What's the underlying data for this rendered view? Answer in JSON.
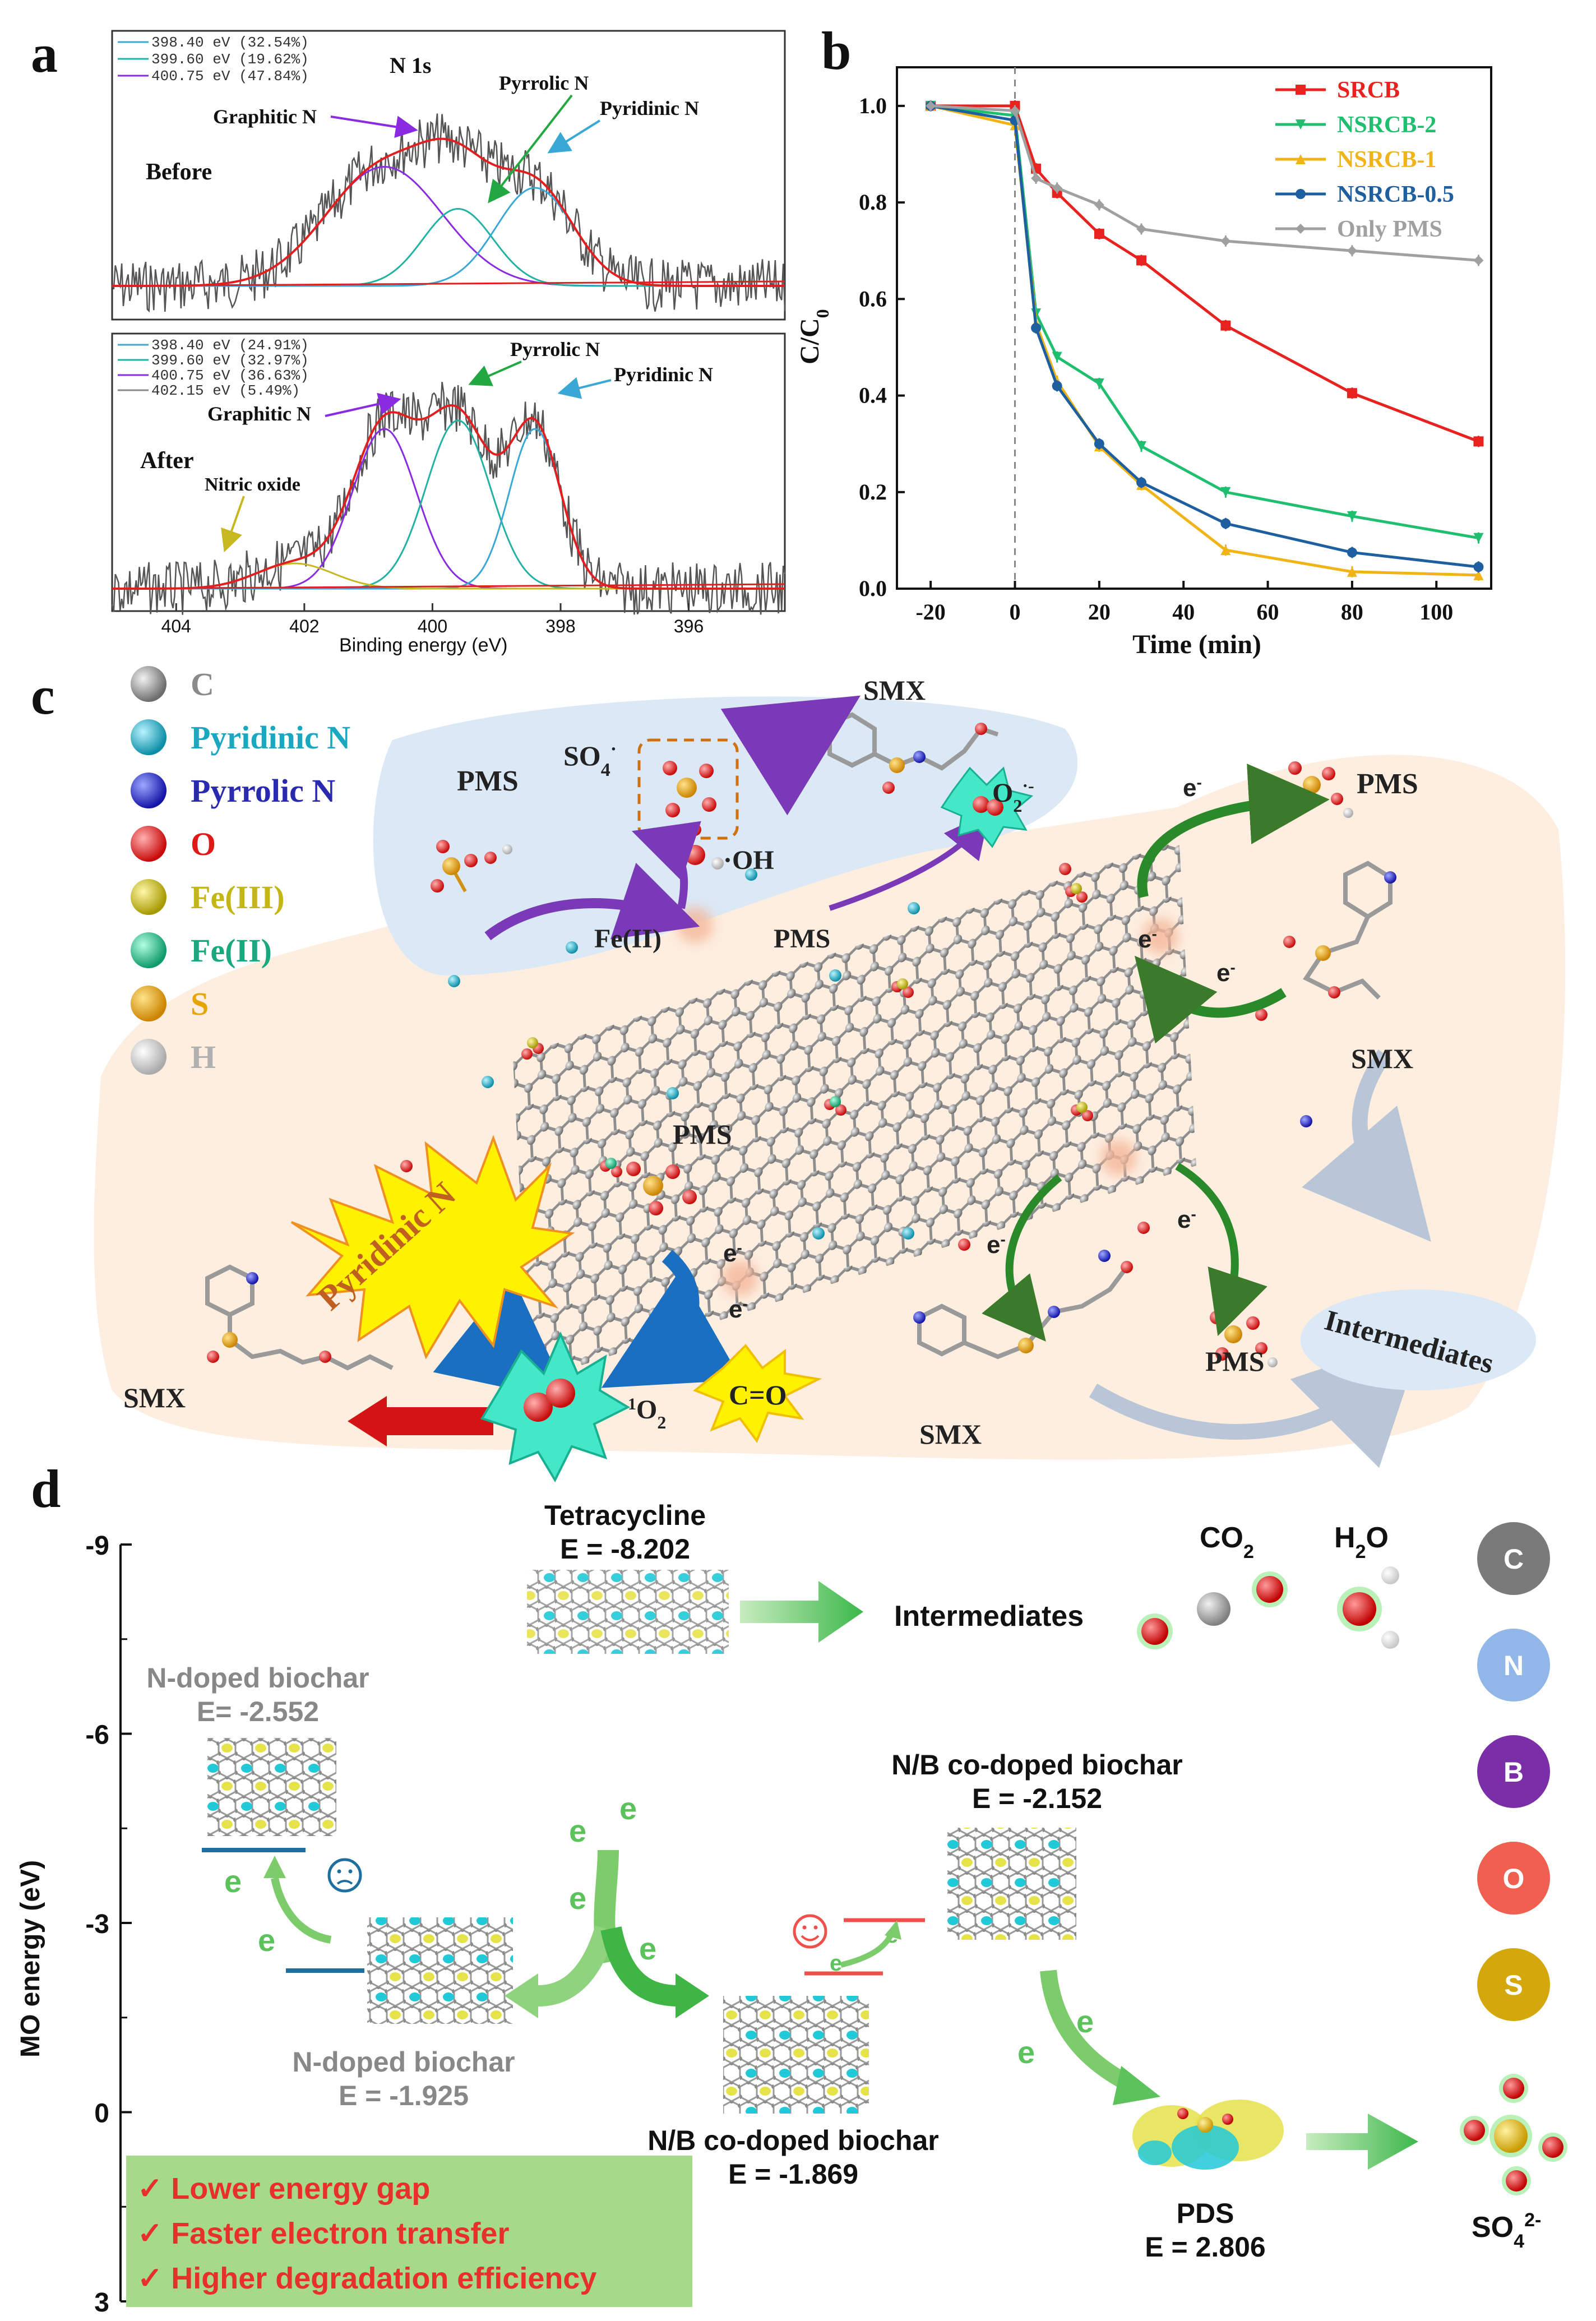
{
  "panels": {
    "a": {
      "label": "a",
      "title": "N 1s",
      "xlabel": "Binding energy (eV)",
      "xticks": [
        "404",
        "402",
        "400",
        "398",
        "396"
      ],
      "before": {
        "state": "Before",
        "legend": [
          "398.40 eV (32.54%)",
          "399.60 eV (19.62%)",
          "400.75 eV (47.84%)"
        ],
        "annotations": [
          "Graphitic N",
          "Pyrrolic N",
          "Pyridinic N"
        ]
      },
      "after": {
        "state": "After",
        "legend": [
          "398.40 eV (24.91%)",
          "399.60 eV (32.97%)",
          "400.75 eV (36.63%)",
          "402.15 eV (5.49%)"
        ],
        "annotations": [
          "Graphitic N",
          "Pyrrolic N",
          "Pyridinic N",
          "Nitric oxide"
        ]
      }
    },
    "b": {
      "label": "b"
    },
    "c": {
      "label": "c",
      "legend": [
        {
          "name": "C",
          "color": "#8a8a8a",
          "text_color": "#8a8a8a"
        },
        {
          "name": "Pyridinic N",
          "color": "#19b6c9",
          "text_color": "#19a8c0"
        },
        {
          "name": "Pyrrolic N",
          "color": "#2828c8",
          "text_color": "#2a2ab0"
        },
        {
          "name": "O",
          "color": "#e01818",
          "text_color": "#e01818"
        },
        {
          "name": "Fe(III)",
          "color": "#c9c417",
          "text_color": "#c4b616"
        },
        {
          "name": "Fe(II)",
          "color": "#1fbf8f",
          "text_color": "#1aa87e"
        },
        {
          "name": "S",
          "color": "#e6a400",
          "text_color": "#e6a400"
        },
        {
          "name": "H",
          "color": "#e8e8e8",
          "text_color": "#b0b0b0"
        }
      ],
      "labels": {
        "pms": "PMS",
        "so4": "SO",
        "so4_sub": "4",
        "so4_sup": "·",
        "oh": "·OH",
        "smx": "SMX",
        "o2": "O",
        "o2_sub": "2",
        "o2_sup": "·-",
        "fe2": "Fe(II)",
        "e": "e",
        "e_sup": "-",
        "singlet_o2_sup": "1",
        "singlet_o2": "O",
        "singlet_o2_sub": "2",
        "pyridinic_n": "Pyridinic N",
        "co": "C=O",
        "intermediates": "Intermediates"
      }
    },
    "d": {
      "label": "d",
      "ylabel": "MO energy (eV)",
      "yticks": [
        "-9",
        "-6",
        "-3",
        "0",
        "3"
      ],
      "tetracycline": {
        "name": "Tetracycline",
        "energy": "E = -8.202"
      },
      "intermediates": "Intermediates",
      "co2": "CO",
      "co2_sub": "2",
      "h2o": "H",
      "h2o_sub": "2",
      "h2o_tail": "O",
      "n_top": {
        "name": "N-doped biochar",
        "energy": "E= -2.552"
      },
      "n_bottom": {
        "name": "N-doped biochar",
        "energy": "E = -1.925"
      },
      "nb_top": {
        "name": "N/B co-doped biochar",
        "energy": "E = -2.152"
      },
      "nb_bottom": {
        "name": "N/B co-doped biochar",
        "energy": "E = -1.869"
      },
      "pds": {
        "name": "PDS",
        "energy": "E = 2.806"
      },
      "so4": "SO",
      "so4_sub": "4",
      "so4_sup": "2-",
      "e": "e",
      "elements": [
        {
          "name": "C",
          "color": "#7a7a7a"
        },
        {
          "name": "N",
          "color": "#90b7e8"
        },
        {
          "name": "B",
          "color": "#7a2fa8"
        },
        {
          "name": "O",
          "color": "#f06050"
        },
        {
          "name": "S",
          "color": "#d4a80c"
        }
      ],
      "benefits": [
        "✓ Lower energy gap",
        "✓ Faster electron transfer",
        "✓ Higher degradation efficiency"
      ]
    }
  },
  "chart_data": [
    {
      "type": "line",
      "title": "",
      "xlabel": "Time (min)",
      "ylabel": "C/C0",
      "x": [
        -20,
        0,
        5,
        10,
        20,
        30,
        50,
        80,
        110
      ],
      "xticks": [
        -20,
        0,
        20,
        40,
        60,
        80,
        100
      ],
      "yticks": [
        0.0,
        0.2,
        0.4,
        0.6,
        0.8,
        1.0
      ],
      "xlim": [
        -28,
        113
      ],
      "ylim": [
        0,
        1.08
      ],
      "legend_position": "top-right",
      "series": [
        {
          "name": "SRCB",
          "color": "#e8221e",
          "marker": "square",
          "values": [
            1.0,
            1.0,
            0.87,
            0.82,
            0.735,
            0.68,
            0.545,
            0.405,
            0.305
          ]
        },
        {
          "name": "NSRCB-2",
          "color": "#1fbf6f",
          "marker": "triangle-down",
          "values": [
            1.0,
            0.98,
            0.57,
            0.48,
            0.425,
            0.295,
            0.2,
            0.15,
            0.105
          ]
        },
        {
          "name": "NSRCB-1",
          "color": "#f0b418",
          "marker": "triangle-up",
          "values": [
            1.0,
            0.96,
            0.55,
            0.43,
            0.295,
            0.215,
            0.08,
            0.035,
            0.028
          ]
        },
        {
          "name": "NSRCB-0.5",
          "color": "#1e5fa0",
          "marker": "circle",
          "values": [
            1.0,
            0.97,
            0.54,
            0.42,
            0.3,
            0.22,
            0.135,
            0.075,
            0.045
          ]
        },
        {
          "name": "Only PMS",
          "color": "#a0a0a0",
          "marker": "diamond",
          "values": [
            1.0,
            0.99,
            0.85,
            0.83,
            0.795,
            0.745,
            0.72,
            0.7,
            0.68
          ]
        }
      ]
    },
    {
      "type": "line",
      "title": "N 1s XPS before/after",
      "xlabel": "Binding energy (eV)",
      "xlim": [
        405,
        394.5
      ],
      "xticks": [
        404,
        402,
        400,
        398,
        396
      ],
      "series": [
        {
          "name": "Before: 398.40 eV",
          "peak_eV": 398.4,
          "percent": 32.54
        },
        {
          "name": "Before: 399.60 eV",
          "peak_eV": 399.6,
          "percent": 19.62
        },
        {
          "name": "Before: 400.75 eV",
          "peak_eV": 400.75,
          "percent": 47.84
        },
        {
          "name": "After: 398.40 eV",
          "peak_eV": 398.4,
          "percent": 24.91
        },
        {
          "name": "After: 399.60 eV",
          "peak_eV": 399.6,
          "percent": 32.97
        },
        {
          "name": "After: 400.75 eV",
          "peak_eV": 400.75,
          "percent": 36.63
        },
        {
          "name": "After: 402.15 eV",
          "peak_eV": 402.15,
          "percent": 5.49
        }
      ]
    }
  ]
}
